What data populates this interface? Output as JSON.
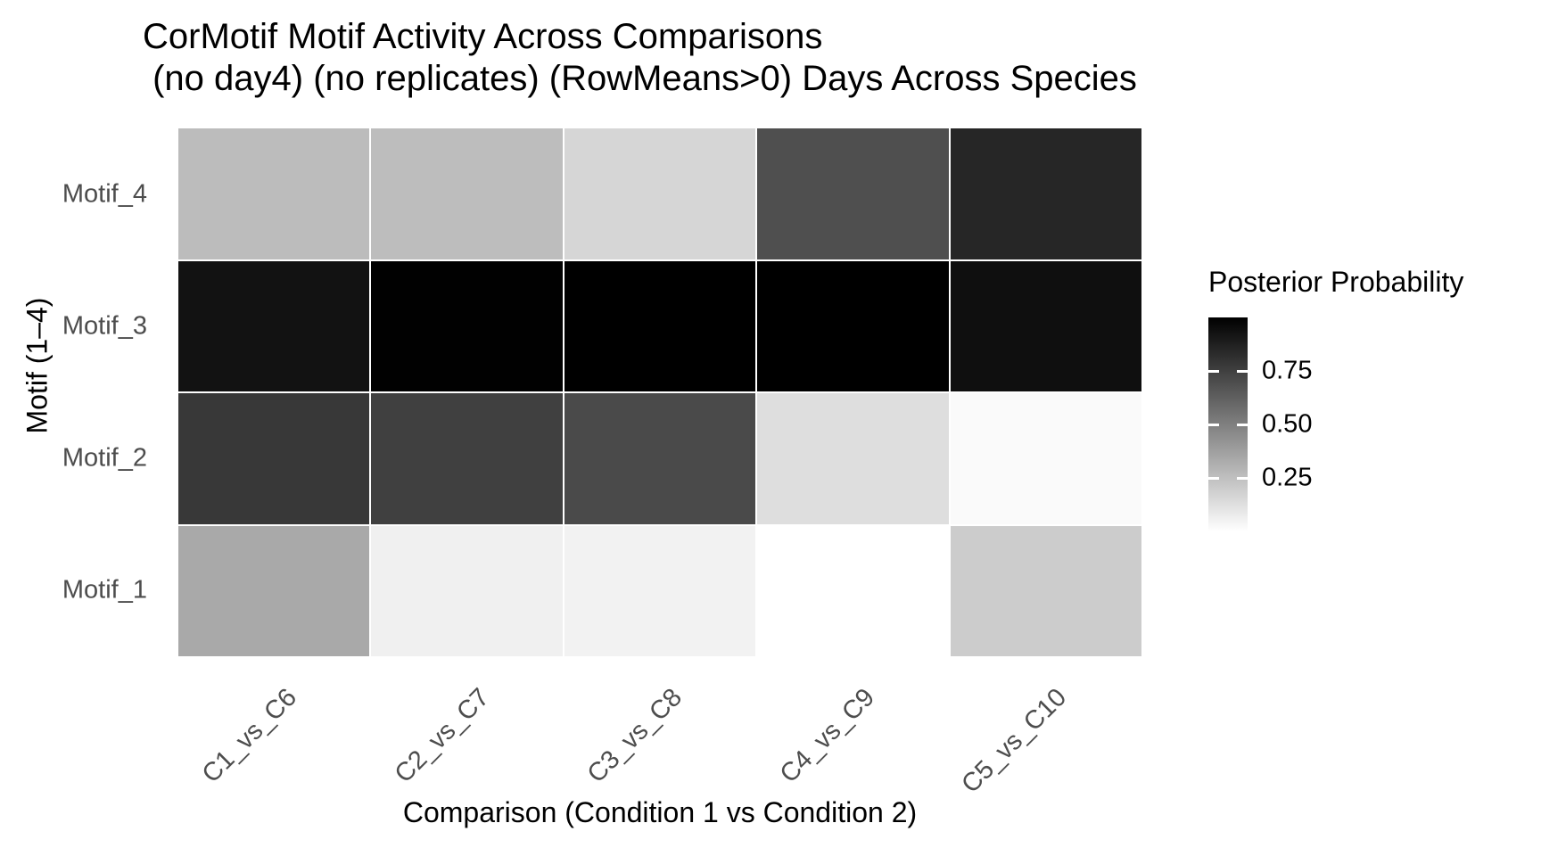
{
  "title_line1": "CorMotif Motif Activity Across Comparisons",
  "title_line2": " (no day4) (no replicates) (RowMeans>0) Days Across Species",
  "chart_data": {
    "type": "heatmap",
    "title": "CorMotif Motif Activity Across Comparisons (no day4) (no replicates) (RowMeans>0) Days Across Species",
    "xlabel": "Comparison (Condition 1 vs Condition 2)",
    "ylabel": "Motif (1–4)",
    "x_categories": [
      "C1_vs_C6",
      "C2_vs_C7",
      "C3_vs_C8",
      "C4_vs_C9",
      "C5_vs_C10"
    ],
    "y_categories_top_to_bottom": [
      "Motif_4",
      "Motif_3",
      "Motif_2",
      "Motif_1"
    ],
    "series": [
      {
        "name": "Motif_4",
        "values": [
          0.23,
          0.23,
          0.14,
          0.67,
          0.87
        ],
        "colors": [
          "#bcbcbc",
          "#bdbdbd",
          "#d6d6d6",
          "#4f4f4f",
          "#262626"
        ]
      },
      {
        "name": "Motif_3",
        "values": [
          0.97,
          1.0,
          1.0,
          1.0,
          0.96
        ],
        "colors": [
          "#121212",
          "#010101",
          "#000000",
          "#000000",
          "#0f0f0f"
        ]
      },
      {
        "name": "Motif_2",
        "values": [
          0.78,
          0.74,
          0.69,
          0.12,
          0.02
        ],
        "colors": [
          "#383838",
          "#404040",
          "#4a4a4a",
          "#dedede",
          "#fafafa"
        ]
      },
      {
        "name": "Motif_1",
        "values": [
          0.3,
          0.06,
          0.05,
          0.0,
          0.18
        ],
        "colors": [
          "#a9a9a9",
          "#f0f0f0",
          "#f2f2f2",
          "#ffffff",
          "#cccccc"
        ]
      }
    ],
    "legend": {
      "title": "Posterior Probability",
      "tick_labels": [
        "0.75",
        "0.50",
        "0.25"
      ],
      "range": [
        0,
        1
      ],
      "high_color": "#000000",
      "low_color": "#ffffff",
      "position": "right"
    },
    "grid": "off",
    "axis_text_color": "#4d4d4d"
  }
}
